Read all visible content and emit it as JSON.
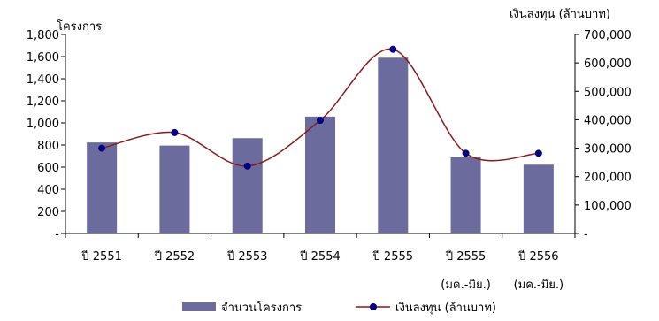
{
  "chart_data": {
    "type": "bar",
    "categories": [
      {
        "line1": "ปี 2551",
        "line2": ""
      },
      {
        "line1": "ปี 2552",
        "line2": ""
      },
      {
        "line1": "ปี 2553",
        "line2": ""
      },
      {
        "line1": "ปี 2554",
        "line2": ""
      },
      {
        "line1": "ปี 2555",
        "line2": ""
      },
      {
        "line1": "ปี 2555",
        "line2": "(มค.-มิย.)"
      },
      {
        "line1": "ปี 2556",
        "line2": "(มค.-มิย.)"
      }
    ],
    "series": [
      {
        "name": "จำนวนโครงการ",
        "type": "bar",
        "axis": "left",
        "color": "#6b6b9e",
        "values": [
          823,
          795,
          862,
          1057,
          1590,
          690,
          622
        ]
      },
      {
        "name": "เงินลงทุน (ล้านบาท)",
        "type": "line",
        "axis": "right",
        "color": "#8b1a1a",
        "marker_color": "#000080",
        "values": [
          300000,
          355000,
          237000,
          398000,
          648000,
          282000,
          282000
        ]
      }
    ],
    "ylabel_left": "โครงการ",
    "ylabel_right": "เงินลงทุน (ล้านบาท)",
    "ylim_left": [
      0,
      1800
    ],
    "ylim_right": [
      0,
      700000
    ],
    "yticks_left": [
      "-",
      "200",
      "400",
      "600",
      "800",
      "1,000",
      "1,200",
      "1,400",
      "1,600",
      "1,800"
    ],
    "yticks_right": [
      "-",
      "100,000",
      "200,000",
      "300,000",
      "400,000",
      "500,000",
      "600,000",
      "700,000"
    ],
    "grid": false,
    "legend_position": "bottom"
  }
}
